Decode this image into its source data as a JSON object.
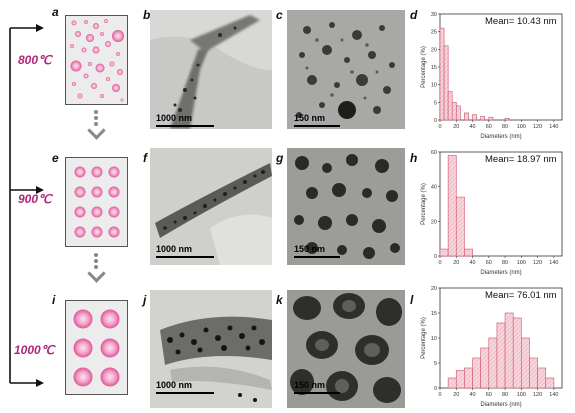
{
  "rows": [
    {
      "temperature": "800℃",
      "labels": {
        "scheme": "a",
        "tem_low": "b",
        "tem_high": "c",
        "hist": "d"
      },
      "scale_low": "1000 nm",
      "scale_high": "150 nm",
      "mean": "Mean= 10.43 nm"
    },
    {
      "temperature": "900℃",
      "labels": {
        "scheme": "e",
        "tem_low": "f",
        "tem_high": "g",
        "hist": "h"
      },
      "scale_low": "1000 nm",
      "scale_high": "150 nm",
      "mean": "Mean= 18.97 nm"
    },
    {
      "temperature": "1000℃",
      "labels": {
        "scheme": "i",
        "tem_low": "j",
        "tem_high": "k",
        "hist": "l"
      },
      "scale_low": "1000 nm",
      "scale_high": "150 nm",
      "mean": "Mean= 76.01 nm"
    }
  ],
  "chart_data": [
    {
      "type": "bar",
      "xlabel": "Diameters (nm)",
      "ylabel": "Percentage (%)",
      "xlim": [
        0,
        150
      ],
      "ylim": [
        0,
        30
      ],
      "xticks": [
        "0",
        "20",
        "40",
        "60",
        "80",
        "100",
        "120",
        "140"
      ],
      "yticks": [
        "0",
        "5",
        "10",
        "15",
        "20",
        "25",
        "30"
      ],
      "bin_width": 5,
      "bins": [
        {
          "x": 0,
          "value": 26
        },
        {
          "x": 5,
          "value": 21
        },
        {
          "x": 10,
          "value": 8
        },
        {
          "x": 15,
          "value": 5
        },
        {
          "x": 20,
          "value": 4
        },
        {
          "x": 30,
          "value": 2
        },
        {
          "x": 40,
          "value": 1.5
        },
        {
          "x": 50,
          "value": 1
        },
        {
          "x": 60,
          "value": 0.8
        },
        {
          "x": 80,
          "value": 0.5
        }
      ],
      "bar_color": "#f6d6dc",
      "edge_color": "#d0506a"
    },
    {
      "type": "bar",
      "xlabel": "Diameters (nm)",
      "ylabel": "Percentage (%)",
      "xlim": [
        0,
        150
      ],
      "ylim": [
        0,
        60
      ],
      "xticks": [
        "0",
        "20",
        "40",
        "60",
        "80",
        "100",
        "120",
        "140"
      ],
      "yticks": [
        "0",
        "20",
        "40",
        "60"
      ],
      "bin_width": 10,
      "bins": [
        {
          "x": 0,
          "value": 4
        },
        {
          "x": 10,
          "value": 58
        },
        {
          "x": 20,
          "value": 34
        },
        {
          "x": 30,
          "value": 4
        }
      ],
      "bar_color": "#f6d6dc",
      "edge_color": "#d0506a"
    },
    {
      "type": "bar",
      "xlabel": "Diameters (nm)",
      "ylabel": "Percentage (%)",
      "xlim": [
        0,
        150
      ],
      "ylim": [
        0,
        20
      ],
      "xticks": [
        "0",
        "20",
        "40",
        "60",
        "80",
        "100",
        "120",
        "140"
      ],
      "yticks": [
        "0",
        "5",
        "10",
        "15",
        "20"
      ],
      "bin_width": 10,
      "bins": [
        {
          "x": 10,
          "value": 2
        },
        {
          "x": 20,
          "value": 3.5
        },
        {
          "x": 30,
          "value": 4
        },
        {
          "x": 40,
          "value": 6
        },
        {
          "x": 50,
          "value": 8
        },
        {
          "x": 60,
          "value": 10
        },
        {
          "x": 70,
          "value": 13
        },
        {
          "x": 80,
          "value": 15
        },
        {
          "x": 90,
          "value": 14
        },
        {
          "x": 100,
          "value": 10
        },
        {
          "x": 110,
          "value": 6
        },
        {
          "x": 120,
          "value": 4
        },
        {
          "x": 130,
          "value": 2
        }
      ],
      "bar_color": "#f6d6dc",
      "edge_color": "#d0506a"
    }
  ]
}
